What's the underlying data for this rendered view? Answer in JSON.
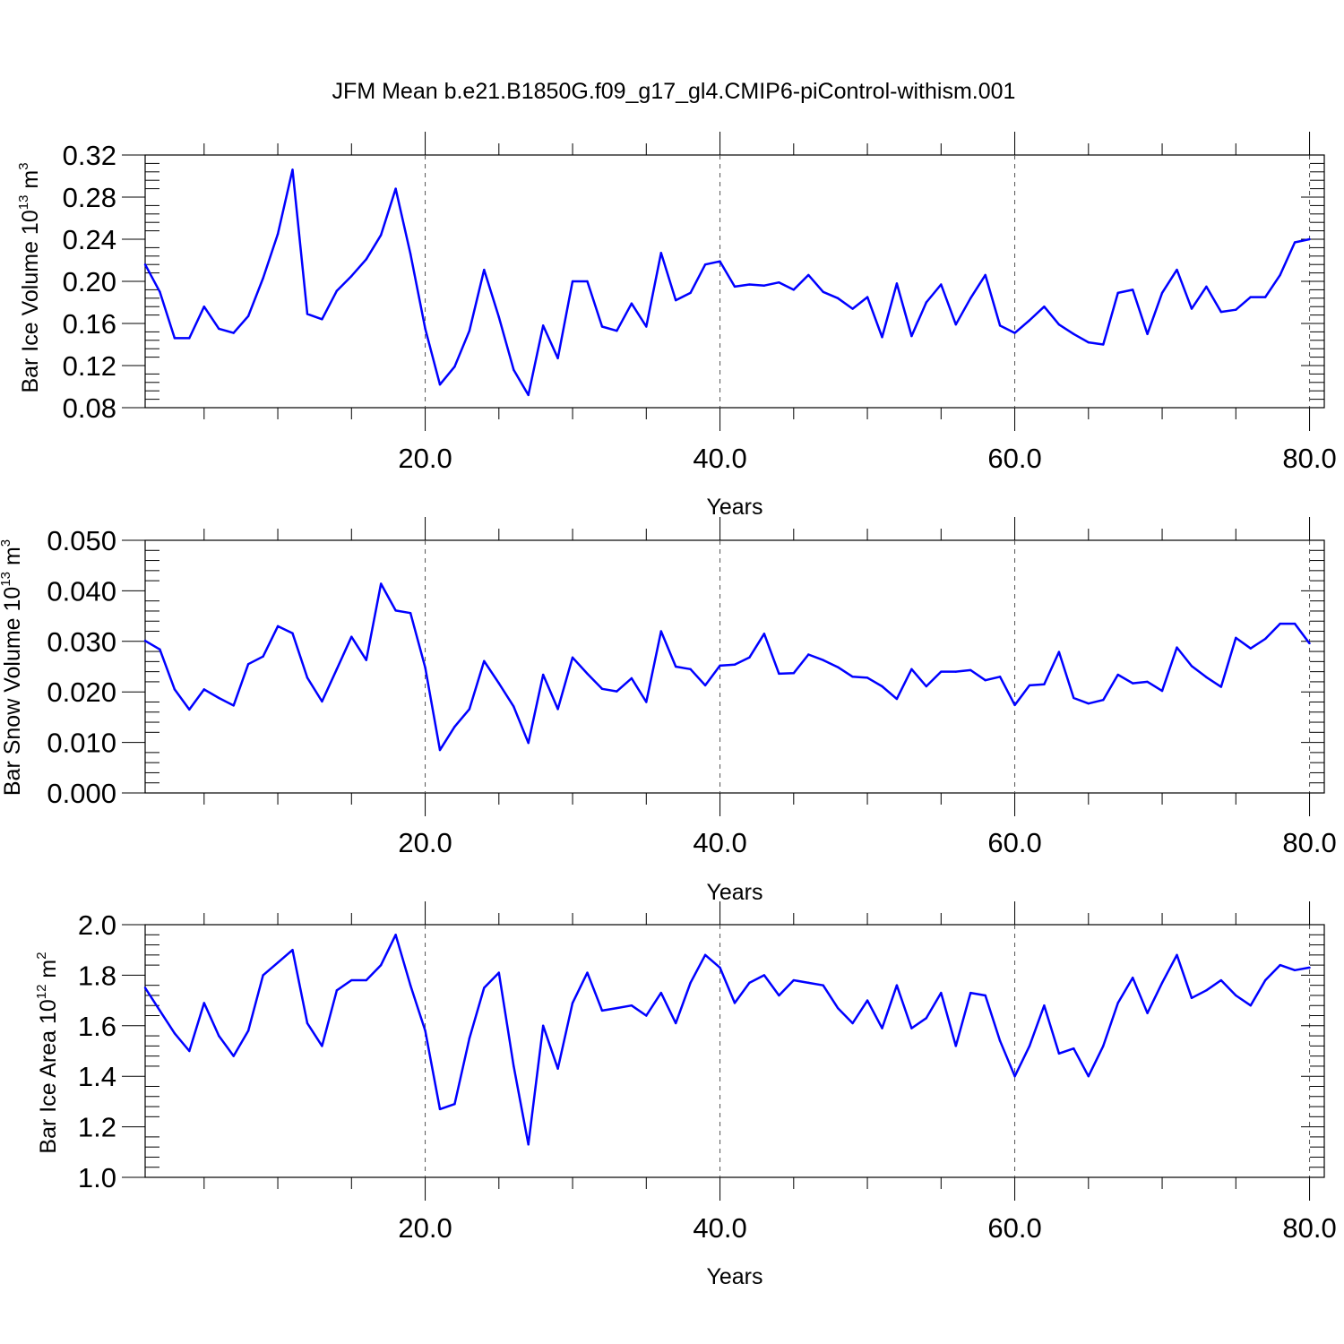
{
  "title": "JFM Mean b.e21.B1850G.f09_g17_gl4.CMIP6-piControl-withism.001",
  "chart_data": [
    {
      "type": "line",
      "title": "JFM Mean b.e21.B1850G.f09_g17_gl4.CMIP6-piControl-withism.001",
      "xlabel": "Years",
      "ylabel": "Bar Ice Volume 10",
      "ylabel_exp": "13",
      "ylabel_unit": " m",
      "ylabel_unit_exp": "3",
      "xlim": [
        1,
        81
      ],
      "ylim": [
        0.08,
        0.32
      ],
      "x_ticks": [
        20,
        40,
        60,
        80
      ],
      "x_tick_labels": [
        "20.0",
        "40.0",
        "60.0",
        "80.0"
      ],
      "y_ticks": [
        0.08,
        0.12,
        0.16,
        0.2,
        0.24,
        0.28,
        0.32
      ],
      "y_tick_labels": [
        "0.08",
        "0.12",
        "0.16",
        "0.20",
        "0.24",
        "0.28",
        "0.32"
      ],
      "grid": "vertical dashed at major x ticks",
      "line_color": "#0000ff",
      "series": [
        {
          "x_start": 1,
          "values": [
            0.216,
            0.19,
            0.146,
            0.146,
            0.176,
            0.155,
            0.151,
            0.167,
            0.203,
            0.245,
            0.306,
            0.169,
            0.164,
            0.191,
            0.205,
            0.221,
            0.244,
            0.288,
            0.226,
            0.155,
            0.102,
            0.119,
            0.153,
            0.211,
            0.166,
            0.116,
            0.092,
            0.158,
            0.127,
            0.2,
            0.2,
            0.157,
            0.153,
            0.179,
            0.157,
            0.227,
            0.182,
            0.189,
            0.216,
            0.219,
            0.195,
            0.197,
            0.196,
            0.199,
            0.192,
            0.206,
            0.19,
            0.184,
            0.174,
            0.185,
            0.147,
            0.198,
            0.148,
            0.18,
            0.197,
            0.159,
            0.184,
            0.206,
            0.158,
            0.151,
            0.163,
            0.176,
            0.159,
            0.15,
            0.142,
            0.14,
            0.189,
            0.192,
            0.15,
            0.189,
            0.211,
            0.174,
            0.195,
            0.171,
            0.173,
            0.185,
            0.185,
            0.206,
            0.237,
            0.24
          ]
        }
      ]
    },
    {
      "type": "line",
      "xlabel": "Years",
      "ylabel": "Bar Snow Volume 10",
      "ylabel_exp": "13",
      "ylabel_unit": " m",
      "ylabel_unit_exp": "3",
      "xlim": [
        1,
        81
      ],
      "ylim": [
        0.0,
        0.05
      ],
      "x_ticks": [
        20,
        40,
        60,
        80
      ],
      "x_tick_labels": [
        "20.0",
        "40.0",
        "60.0",
        "80.0"
      ],
      "y_ticks": [
        0.0,
        0.01,
        0.02,
        0.03,
        0.04,
        0.05
      ],
      "y_tick_labels": [
        "0.000",
        "0.010",
        "0.020",
        "0.030",
        "0.040",
        "0.050"
      ],
      "grid": "vertical dashed at major x ticks",
      "line_color": "#0000ff",
      "series": [
        {
          "x_start": 1,
          "values": [
            0.0301,
            0.0284,
            0.0205,
            0.0165,
            0.0205,
            0.0188,
            0.0173,
            0.0255,
            0.027,
            0.033,
            0.0316,
            0.0228,
            0.0181,
            0.0245,
            0.0309,
            0.0263,
            0.0414,
            0.0361,
            0.0356,
            0.0248,
            0.0085,
            0.0131,
            0.0166,
            0.0261,
            0.0217,
            0.0171,
            0.0099,
            0.0234,
            0.0166,
            0.0268,
            0.0236,
            0.0206,
            0.0201,
            0.0227,
            0.018,
            0.032,
            0.025,
            0.0245,
            0.0213,
            0.0252,
            0.0254,
            0.0268,
            0.0315,
            0.0236,
            0.0237,
            0.0274,
            0.0263,
            0.0249,
            0.023,
            0.0228,
            0.0211,
            0.0186,
            0.0245,
            0.0211,
            0.024,
            0.024,
            0.0243,
            0.0223,
            0.023,
            0.0174,
            0.0213,
            0.0215,
            0.0279,
            0.0188,
            0.0177,
            0.0184,
            0.0234,
            0.0217,
            0.022,
            0.0202,
            0.0288,
            0.0251,
            0.0229,
            0.021,
            0.0307,
            0.0286,
            0.0305,
            0.0335,
            0.0335,
            0.0296
          ]
        }
      ]
    },
    {
      "type": "line",
      "xlabel": "Years",
      "ylabel": "Bar Ice Area 10",
      "ylabel_exp": "12",
      "ylabel_unit": " m",
      "ylabel_unit_exp": "2",
      "xlim": [
        1,
        81
      ],
      "ylim": [
        1.0,
        2.0
      ],
      "x_ticks": [
        20,
        40,
        60,
        80
      ],
      "x_tick_labels": [
        "20.0",
        "40.0",
        "60.0",
        "80.0"
      ],
      "y_ticks": [
        1.0,
        1.2,
        1.4,
        1.6,
        1.8,
        2.0
      ],
      "y_tick_labels": [
        "1.0",
        "1.2",
        "1.4",
        "1.6",
        "1.8",
        "2.0"
      ],
      "grid": "vertical dashed at major x ticks",
      "line_color": "#0000ff",
      "series": [
        {
          "x_start": 1,
          "values": [
            1.75,
            1.66,
            1.57,
            1.5,
            1.69,
            1.56,
            1.48,
            1.58,
            1.8,
            1.85,
            1.9,
            1.61,
            1.52,
            1.74,
            1.78,
            1.78,
            1.84,
            1.96,
            1.76,
            1.58,
            1.27,
            1.29,
            1.55,
            1.75,
            1.81,
            1.44,
            1.13,
            1.6,
            1.43,
            1.69,
            1.81,
            1.66,
            1.67,
            1.68,
            1.64,
            1.73,
            1.61,
            1.77,
            1.88,
            1.83,
            1.69,
            1.77,
            1.8,
            1.72,
            1.78,
            1.77,
            1.76,
            1.67,
            1.61,
            1.7,
            1.59,
            1.76,
            1.59,
            1.63,
            1.73,
            1.52,
            1.73,
            1.72,
            1.54,
            1.4,
            1.52,
            1.68,
            1.49,
            1.51,
            1.4,
            1.52,
            1.69,
            1.79,
            1.65,
            1.77,
            1.88,
            1.71,
            1.74,
            1.78,
            1.72,
            1.68,
            1.78,
            1.84,
            1.82,
            1.83
          ]
        }
      ]
    }
  ]
}
